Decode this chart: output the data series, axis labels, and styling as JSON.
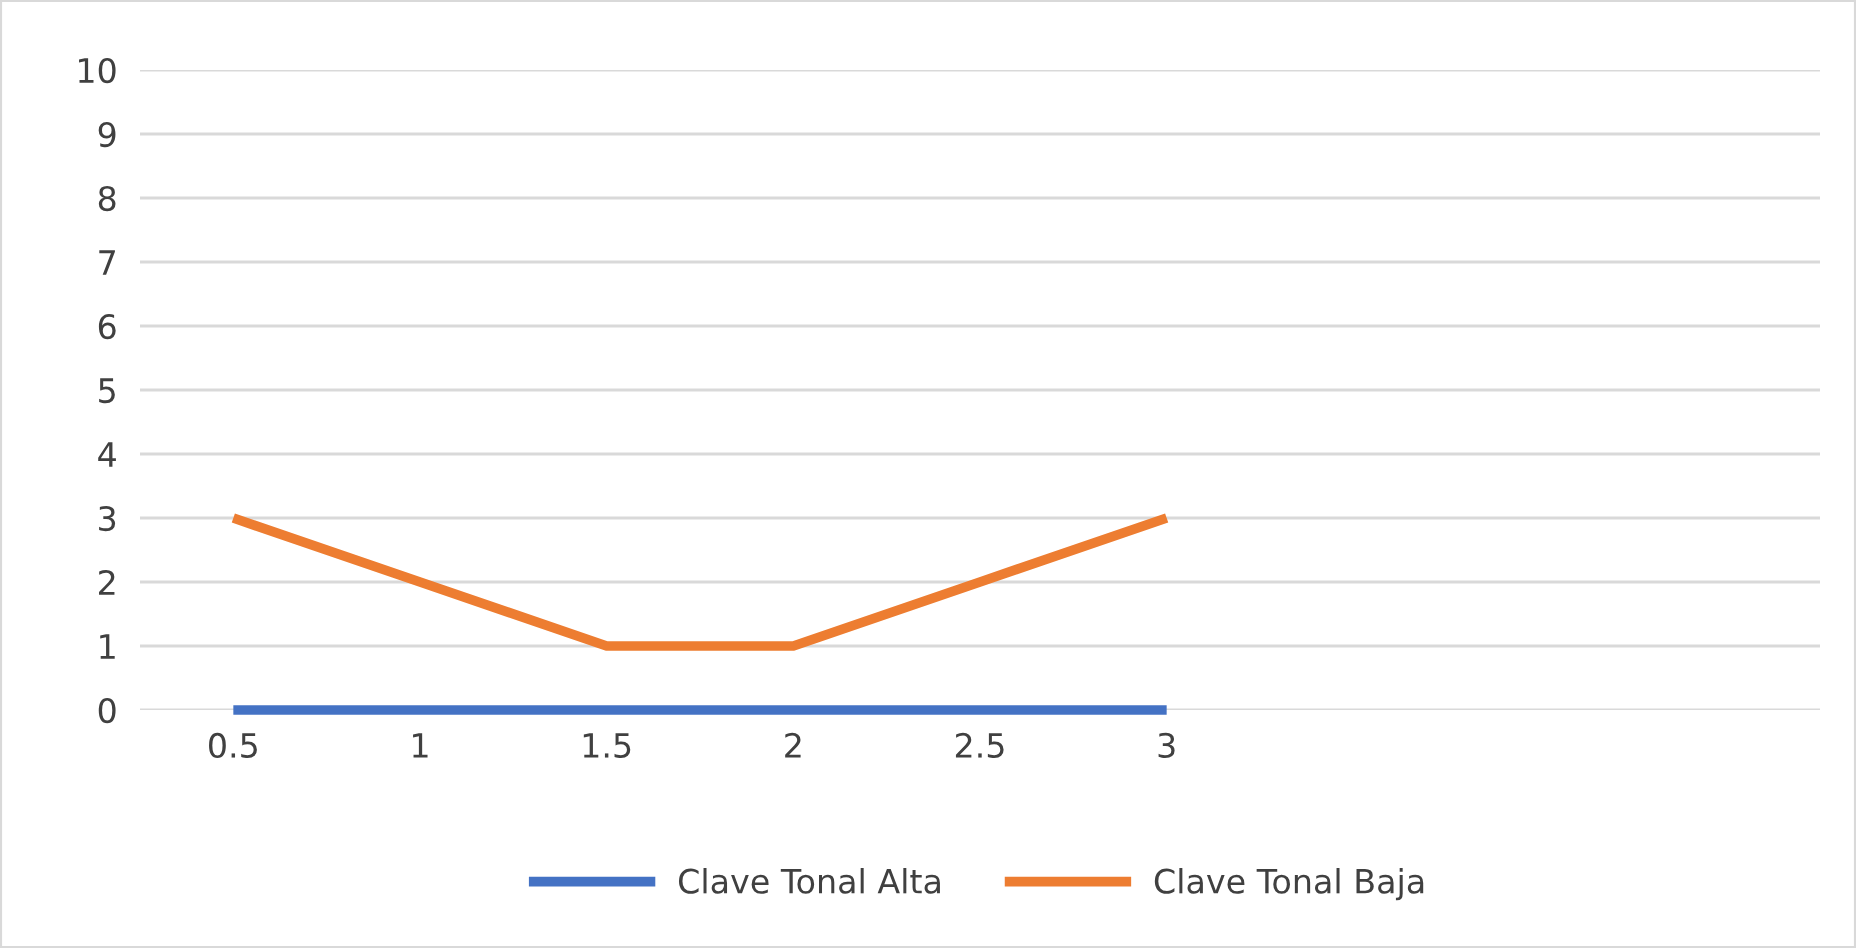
{
  "chart_data": {
    "type": "line",
    "categories": [
      "0.5",
      "1",
      "1.5",
      "2",
      "2.5",
      "3",
      null,
      null,
      null
    ],
    "series": [
      {
        "name": "Clave Tonal Alta",
        "color": "#4472c4",
        "values": [
          0,
          0,
          0,
          0,
          0,
          0,
          null,
          null,
          null
        ]
      },
      {
        "name": "Clave Tonal Baja",
        "color": "#ed7d31",
        "values": [
          3,
          2,
          1,
          1,
          2,
          3,
          null,
          null,
          null
        ]
      }
    ],
    "ylim": [
      0,
      10
    ],
    "yticks": [
      0,
      1,
      2,
      3,
      4,
      5,
      6,
      7,
      8,
      9,
      10
    ],
    "grid": "y",
    "legend": "bottom",
    "marker": "none",
    "line_style": "solid"
  }
}
